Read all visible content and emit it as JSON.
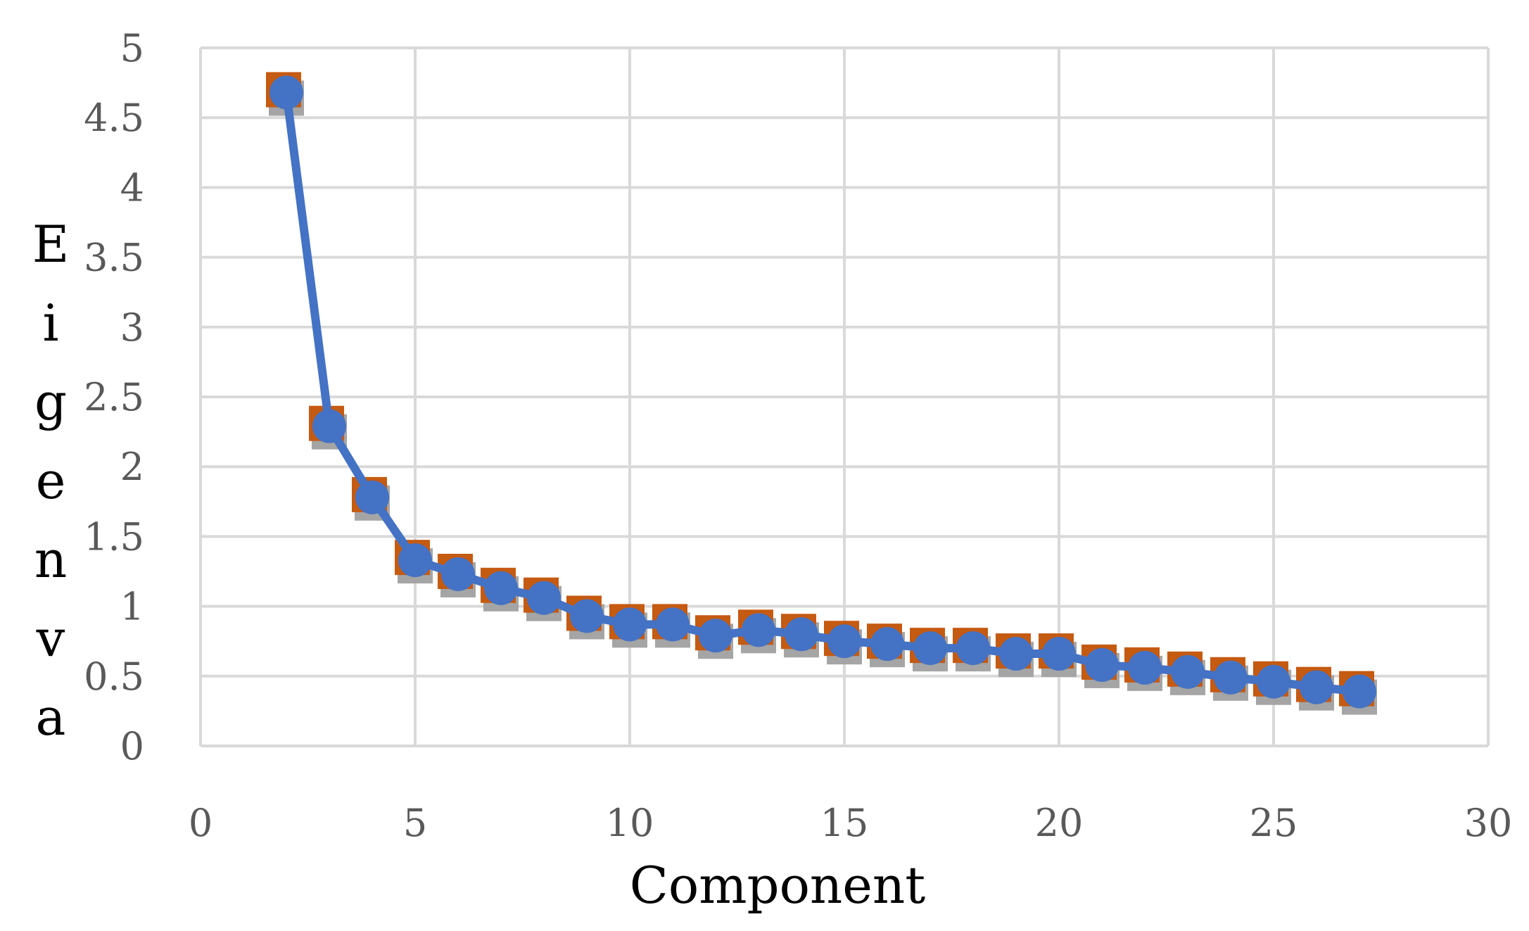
{
  "chart_data": {
    "type": "scatter",
    "title": "",
    "xlabel": "Component",
    "ylabel": "Eigenva",
    "xlim": [
      0,
      30
    ],
    "ylim": [
      0,
      5
    ],
    "x_ticks": [
      "0",
      "5",
      "10",
      "15",
      "20",
      "25",
      "30"
    ],
    "y_ticks": [
      "0",
      "0.5",
      "1",
      "1.5",
      "2",
      "2.5",
      "3",
      "3.5",
      "4",
      "4.5",
      "5"
    ],
    "grid": true,
    "legend": "none",
    "x": [
      2,
      3,
      4,
      5,
      6,
      7,
      8,
      9,
      10,
      11,
      12,
      13,
      14,
      15,
      16,
      17,
      18,
      19,
      20,
      21,
      22,
      23,
      24,
      25,
      26,
      27
    ],
    "series": [
      {
        "values": [
          4.68,
          2.29,
          1.78,
          1.33,
          1.23,
          1.13,
          1.06,
          0.93,
          0.87,
          0.87,
          0.79,
          0.83,
          0.8,
          0.75,
          0.73,
          0.7,
          0.7,
          0.66,
          0.66,
          0.58,
          0.56,
          0.53,
          0.49,
          0.46,
          0.42,
          0.39
        ],
        "marker": "square",
        "color": "#C55A11",
        "shadow_color": "#A5A5A5",
        "line": false
      },
      {
        "values": [
          4.68,
          2.29,
          1.78,
          1.33,
          1.23,
          1.13,
          1.06,
          0.93,
          0.87,
          0.87,
          0.79,
          0.83,
          0.8,
          0.75,
          0.73,
          0.7,
          0.7,
          0.66,
          0.66,
          0.58,
          0.56,
          0.53,
          0.49,
          0.46,
          0.42,
          0.39
        ],
        "marker": "circle",
        "color": "#4472C4",
        "line": true
      }
    ]
  }
}
